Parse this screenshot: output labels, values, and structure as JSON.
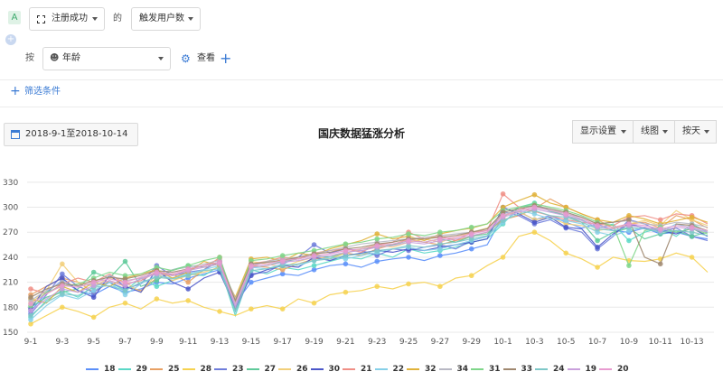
{
  "filter": {
    "group_badge": "A",
    "event_select": "注册成功",
    "connector": "的",
    "metric_select": "触发用户数",
    "add_group_symbol": "+",
    "by_label": "按",
    "dimension_select": "年龄",
    "view_label": "查看",
    "add_dimension_symbol": "+",
    "add_filter_label": "筛选条件"
  },
  "toolbar": {
    "date_range": "2018-9-1至2018-10-14",
    "display_settings": "显示设置",
    "chart_type": "线图",
    "granularity": "按天"
  },
  "chart_data": {
    "type": "line",
    "title": "国庆数据猛涨分析",
    "xlabel": "",
    "ylabel": "",
    "ylim": [
      150,
      345
    ],
    "yticks": [
      150,
      180,
      210,
      240,
      270,
      300,
      330
    ],
    "grid": true,
    "legend_position": "bottom",
    "x": [
      "9-1",
      "9-2",
      "9-3",
      "9-4",
      "9-5",
      "9-6",
      "9-7",
      "9-8",
      "9-9",
      "9-10",
      "9-11",
      "9-12",
      "9-13",
      "9-14",
      "9-15",
      "9-16",
      "9-17",
      "9-18",
      "9-19",
      "9-20",
      "9-21",
      "9-22",
      "9-23",
      "9-24",
      "9-25",
      "9-26",
      "9-27",
      "9-28",
      "9-29",
      "9-30",
      "10-1",
      "10-2",
      "10-3",
      "10-4",
      "10-5",
      "10-6",
      "10-7",
      "10-8",
      "10-9",
      "10-10",
      "10-11",
      "10-12",
      "10-13",
      "10-14"
    ],
    "xtick_labels": [
      "9-1",
      "9-3",
      "9-5",
      "9-7",
      "9-9",
      "9-11",
      "9-13",
      "9-15",
      "9-17",
      "9-19",
      "9-21",
      "9-23",
      "9-25",
      "9-27",
      "9-29",
      "10-1",
      "10-3",
      "10-5",
      "10-7",
      "10-9",
      "10-11",
      "10-13"
    ],
    "series": [
      {
        "name": "18",
        "color": "#5b8ff9",
        "values": [
          175,
          198,
          212,
          200,
          195,
          205,
          198,
          202,
          210,
          208,
          215,
          220,
          225,
          185,
          210,
          215,
          220,
          218,
          225,
          230,
          232,
          228,
          235,
          238,
          240,
          236,
          242,
          245,
          250,
          255,
          290,
          295,
          285,
          290,
          282,
          275,
          280,
          272,
          270,
          275,
          268,
          270,
          265,
          262
        ]
      },
      {
        "name": "29",
        "color": "#5ad8c6",
        "values": [
          168,
          188,
          200,
          192,
          205,
          210,
          200,
          215,
          205,
          212,
          220,
          218,
          230,
          170,
          225,
          220,
          228,
          225,
          230,
          235,
          240,
          238,
          245,
          240,
          250,
          245,
          248,
          252,
          258,
          262,
          280,
          300,
          305,
          295,
          290,
          285,
          275,
          280,
          260,
          270,
          275,
          265,
          280,
          270
        ]
      },
      {
        "name": "25",
        "color": "#e8a064",
        "values": [
          195,
          205,
          215,
          210,
          198,
          212,
          205,
          200,
          215,
          220,
          210,
          225,
          240,
          180,
          230,
          228,
          225,
          232,
          238,
          240,
          245,
          242,
          250,
          255,
          262,
          258,
          255,
          260,
          265,
          270,
          285,
          290,
          298,
          310,
          300,
          292,
          285,
          275,
          280,
          282,
          275,
          290,
          285,
          275
        ]
      },
      {
        "name": "28",
        "color": "#f6d250",
        "values": [
          160,
          170,
          180,
          175,
          168,
          180,
          185,
          178,
          190,
          185,
          188,
          180,
          175,
          170,
          178,
          182,
          178,
          190,
          185,
          195,
          198,
          200,
          205,
          202,
          208,
          210,
          205,
          215,
          218,
          230,
          240,
          265,
          270,
          260,
          245,
          238,
          228,
          240,
          236,
          235,
          238,
          245,
          240,
          222
        ]
      },
      {
        "name": "23",
        "color": "#6f7ddb",
        "values": [
          172,
          195,
          220,
          205,
          198,
          210,
          202,
          208,
          230,
          218,
          222,
          225,
          235,
          175,
          220,
          222,
          232,
          240,
          255,
          245,
          250,
          248,
          242,
          250,
          248,
          252,
          255,
          250,
          260,
          265,
          295,
          290,
          280,
          285,
          275,
          270,
          250,
          265,
          285,
          280,
          270,
          275,
          265,
          260
        ]
      },
      {
        "name": "27",
        "color": "#5fca9a",
        "values": [
          180,
          192,
          198,
          202,
          222,
          215,
          235,
          205,
          212,
          225,
          230,
          228,
          232,
          178,
          228,
          230,
          235,
          238,
          242,
          240,
          245,
          250,
          252,
          255,
          260,
          258,
          262,
          258,
          265,
          268,
          288,
          300,
          302,
          296,
          290,
          282,
          260,
          270,
          275,
          262,
          268,
          272,
          265,
          270
        ]
      },
      {
        "name": "26",
        "color": "#f2cf7a",
        "values": [
          185,
          200,
          232,
          210,
          205,
          215,
          210,
          198,
          220,
          212,
          218,
          222,
          228,
          190,
          235,
          232,
          228,
          235,
          240,
          238,
          245,
          250,
          255,
          252,
          258,
          262,
          258,
          264,
          270,
          275,
          290,
          295,
          285,
          288,
          280,
          278,
          272,
          275,
          280,
          284,
          278,
          296,
          285,
          278
        ]
      },
      {
        "name": "30",
        "color": "#4b57c9",
        "values": [
          178,
          205,
          215,
          200,
          192,
          218,
          205,
          198,
          225,
          210,
          202,
          215,
          222,
          180,
          218,
          225,
          230,
          228,
          240,
          236,
          242,
          245,
          248,
          246,
          250,
          248,
          252,
          255,
          258,
          262,
          300,
          292,
          282,
          288,
          276,
          274,
          252,
          268,
          280,
          275,
          272,
          268,
          275,
          265
        ]
      },
      {
        "name": "21",
        "color": "#f08f86",
        "values": [
          202,
          196,
          208,
          215,
          210,
          220,
          208,
          212,
          222,
          218,
          225,
          230,
          238,
          188,
          232,
          235,
          240,
          238,
          245,
          248,
          250,
          246,
          255,
          258,
          270,
          262,
          265,
          260,
          270,
          272,
          316,
          300,
          295,
          290,
          285,
          282,
          280,
          278,
          288,
          290,
          285,
          292,
          290,
          280
        ]
      },
      {
        "name": "22",
        "color": "#86d0e8",
        "values": [
          165,
          182,
          195,
          190,
          200,
          210,
          195,
          208,
          218,
          215,
          220,
          225,
          230,
          182,
          228,
          226,
          232,
          230,
          236,
          240,
          238,
          242,
          246,
          250,
          252,
          248,
          250,
          255,
          260,
          265,
          282,
          296,
          292,
          286,
          284,
          280,
          270,
          266,
          272,
          276,
          270,
          280,
          275,
          270
        ]
      },
      {
        "name": "32",
        "color": "#e0b23a",
        "values": [
          190,
          185,
          205,
          198,
          210,
          205,
          215,
          220,
          225,
          215,
          222,
          235,
          230,
          192,
          238,
          240,
          235,
          245,
          242,
          250,
          255,
          260,
          268,
          262,
          265,
          260,
          268,
          272,
          275,
          280,
          300,
          308,
          315,
          305,
          300,
          292,
          285,
          282,
          290,
          286,
          280,
          284,
          288,
          282
        ]
      },
      {
        "name": "34",
        "color": "#b8b8c4",
        "values": [
          188,
          200,
          210,
          205,
          208,
          218,
          212,
          215,
          220,
          225,
          228,
          232,
          236,
          190,
          230,
          235,
          238,
          240,
          244,
          248,
          252,
          256,
          258,
          260,
          262,
          264,
          266,
          268,
          270,
          274,
          292,
          296,
          300,
          298,
          292,
          288,
          280,
          282,
          284,
          280,
          278,
          282,
          280,
          276
        ]
      },
      {
        "name": "31",
        "color": "#7fd68a",
        "values": [
          182,
          198,
          205,
          208,
          215,
          222,
          218,
          220,
          228,
          224,
          230,
          236,
          240,
          186,
          236,
          238,
          242,
          245,
          248,
          252,
          256,
          258,
          262,
          264,
          268,
          266,
          270,
          272,
          276,
          280,
          296,
          300,
          304,
          300,
          296,
          290,
          282,
          278,
          230,
          272,
          276,
          270,
          274,
          268
        ]
      },
      {
        "name": "33",
        "color": "#a08870",
        "values": [
          192,
          202,
          208,
          206,
          212,
          216,
          214,
          218,
          224,
          222,
          226,
          230,
          234,
          188,
          232,
          234,
          236,
          240,
          244,
          246,
          250,
          252,
          256,
          258,
          262,
          262,
          264,
          266,
          270,
          274,
          294,
          298,
          302,
          298,
          294,
          288,
          280,
          282,
          285,
          240,
          232,
          280,
          278,
          272
        ]
      },
      {
        "name": "24",
        "color": "#7ec8c8",
        "values": [
          170,
          186,
          196,
          194,
          204,
          206,
          200,
          210,
          216,
          214,
          218,
          224,
          226,
          175,
          224,
          226,
          230,
          232,
          236,
          238,
          242,
          244,
          248,
          250,
          254,
          252,
          256,
          258,
          262,
          266,
          284,
          292,
          296,
          290,
          288,
          282,
          274,
          272,
          276,
          274,
          270,
          272,
          270,
          266
        ]
      },
      {
        "name": "19",
        "color": "#c9a0dc",
        "values": [
          176,
          190,
          202,
          198,
          206,
          212,
          206,
          214,
          220,
          218,
          224,
          228,
          232,
          180,
          228,
          230,
          234,
          236,
          240,
          242,
          246,
          248,
          252,
          254,
          258,
          256,
          260,
          262,
          266,
          270,
          288,
          294,
          298,
          294,
          290,
          284,
          276,
          274,
          278,
          276,
          272,
          276,
          274,
          270
        ]
      },
      {
        "name": "20",
        "color": "#e89bd0",
        "values": [
          184,
          196,
          206,
          204,
          210,
          214,
          210,
          216,
          222,
          220,
          226,
          230,
          234,
          184,
          230,
          232,
          236,
          238,
          242,
          244,
          248,
          250,
          254,
          256,
          260,
          258,
          262,
          264,
          268,
          272,
          290,
          296,
          300,
          296,
          292,
          286,
          278,
          276,
          280,
          278,
          274,
          278,
          276,
          272
        ]
      }
    ]
  }
}
